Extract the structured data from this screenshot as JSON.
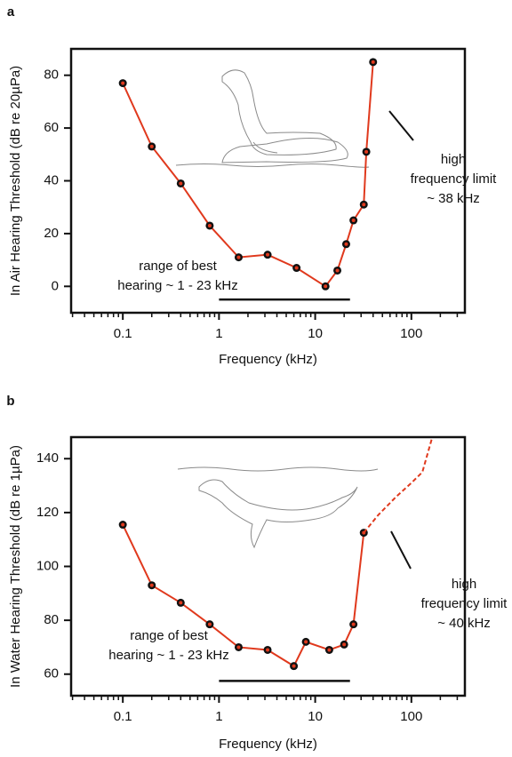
{
  "chart_data": [
    {
      "type": "line",
      "label": "a",
      "xlabel": "Frequency (kHz)",
      "ylabel": "In Air Hearing Threshold (dB re 20µPa)",
      "xscale": "log",
      "xlim": [
        0.029,
        360
      ],
      "ylim": [
        -10,
        90
      ],
      "xticks": [
        0.1,
        1,
        10,
        100
      ],
      "xticks_minor": [
        0.03,
        0.04,
        0.05,
        0.06,
        0.07,
        0.08,
        0.09,
        0.2,
        0.3,
        0.4,
        0.5,
        0.6,
        0.7,
        0.8,
        0.9,
        2,
        3,
        4,
        5,
        6,
        7,
        8,
        9,
        20,
        30,
        40,
        50,
        60,
        70,
        80,
        90,
        200,
        300
      ],
      "yticks": [
        0,
        20,
        40,
        60,
        80
      ],
      "series": [
        {
          "color": "#e0391d",
          "markers": true,
          "dashed": false,
          "x": [
            0.1,
            0.2,
            0.4,
            0.8,
            1.6,
            3.2,
            6.4,
            12.8,
            17,
            21,
            25,
            32,
            34,
            40
          ],
          "values": [
            77,
            53,
            39,
            23,
            11,
            12,
            7,
            0,
            6,
            16,
            25,
            31,
            51,
            85
          ]
        }
      ],
      "range_line": {
        "x": [
          1,
          23
        ],
        "y": -5
      },
      "annotations": [
        {
          "lines": [
            "range of best",
            "hearing ~ 1 - 23 kHz"
          ]
        },
        {
          "lines": [
            "high",
            "frequency limit",
            "~ 38 kHz"
          ]
        }
      ]
    },
    {
      "type": "line",
      "label": "b",
      "xlabel": "Frequency (kHz)",
      "ylabel": "In Water Hearing Threshold (dB re 1µPa)",
      "xscale": "log",
      "xlim": [
        0.029,
        360
      ],
      "ylim": [
        52,
        148
      ],
      "xticks": [
        0.1,
        1,
        10,
        100
      ],
      "xticks_minor": [
        0.03,
        0.04,
        0.05,
        0.06,
        0.07,
        0.08,
        0.09,
        0.2,
        0.3,
        0.4,
        0.5,
        0.6,
        0.7,
        0.8,
        0.9,
        2,
        3,
        4,
        5,
        6,
        7,
        8,
        9,
        20,
        30,
        40,
        50,
        60,
        70,
        80,
        90,
        200,
        300
      ],
      "yticks": [
        60,
        80,
        100,
        120,
        140
      ],
      "series": [
        {
          "color": "#e0391d",
          "markers": true,
          "dashed": false,
          "x": [
            0.1,
            0.2,
            0.4,
            0.8,
            1.6,
            3.2,
            6,
            8,
            14,
            20,
            25,
            32
          ],
          "values": [
            115.5,
            93,
            86.5,
            78.5,
            70,
            69,
            63,
            72,
            69,
            71,
            78.5,
            112.5
          ]
        },
        {
          "color": "#e0391d",
          "markers": false,
          "dashed": true,
          "x": [
            32,
            45,
            70,
            100,
            130,
            165
          ],
          "values": [
            112.5,
            119,
            126,
            131,
            135,
            148
          ]
        }
      ],
      "range_line": {
        "x": [
          1,
          23
        ],
        "y": 57.5
      },
      "annotations": [
        {
          "lines": [
            "range of best",
            "hearing ~ 1 - 23 kHz"
          ]
        },
        {
          "lines": [
            "high",
            "frequency limit",
            "~ 40 kHz"
          ]
        }
      ]
    }
  ]
}
